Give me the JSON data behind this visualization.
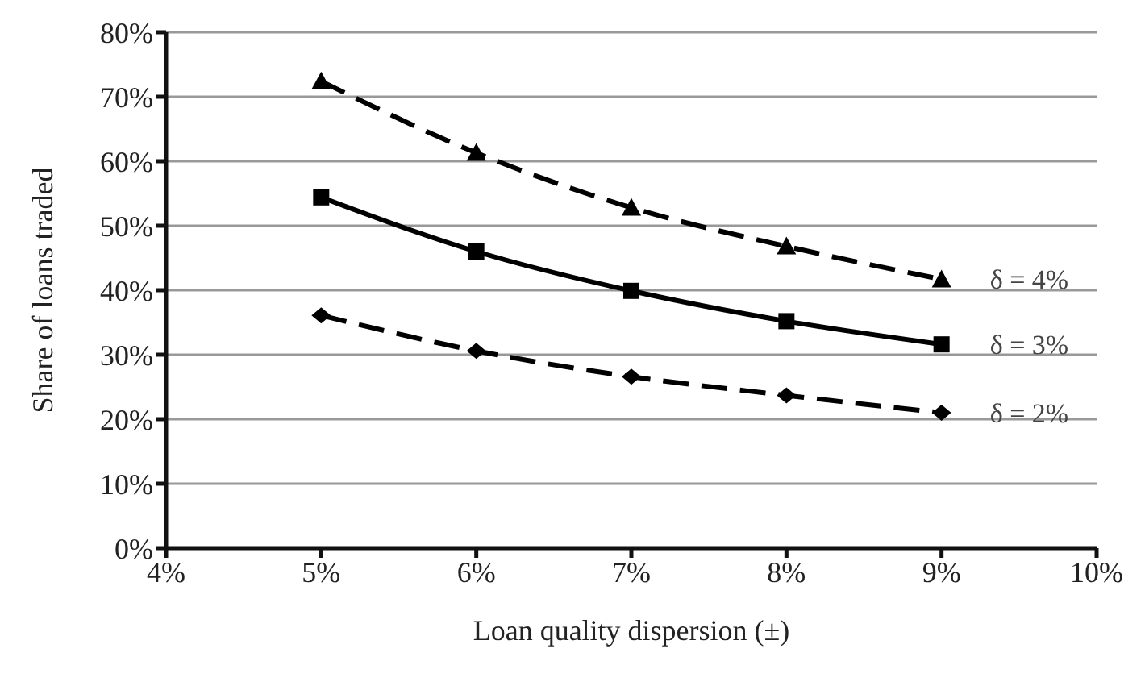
{
  "chart_data": {
    "type": "line",
    "xlabel": "Loan quality dispersion (±)",
    "ylabel": "Share of loans traded",
    "x": [
      5,
      6,
      7,
      8,
      9
    ],
    "series": [
      {
        "name": "δ = 4%",
        "color": "#000000",
        "values": [
          72.4,
          61.3,
          52.8,
          46.8,
          41.7
        ],
        "marker": "triangle",
        "line_style": "dashed"
      },
      {
        "name": "δ = 3%",
        "color": "#000000",
        "values": [
          54.4,
          46.0,
          39.9,
          35.2,
          31.6
        ],
        "marker": "square",
        "line_style": "solid"
      },
      {
        "name": "δ = 2%",
        "color": "#000000",
        "values": [
          36.1,
          30.6,
          26.6,
          23.7,
          21.0
        ],
        "marker": "diamond",
        "line_style": "dashed"
      }
    ],
    "xlim": [
      4,
      10
    ],
    "xticks": [
      {
        "value": 4,
        "label": "4%"
      },
      {
        "value": 5,
        "label": "5%"
      },
      {
        "value": 6,
        "label": "6%"
      },
      {
        "value": 7,
        "label": "7%"
      },
      {
        "value": 8,
        "label": "8%"
      },
      {
        "value": 9,
        "label": "9%"
      },
      {
        "value": 10,
        "label": "10%"
      }
    ],
    "ylim": [
      0,
      80
    ],
    "yticks": [
      {
        "value": 0,
        "label": "0%"
      },
      {
        "value": 10,
        "label": "10%"
      },
      {
        "value": 20,
        "label": "20%"
      },
      {
        "value": 30,
        "label": "30%"
      },
      {
        "value": 40,
        "label": "40%"
      },
      {
        "value": 50,
        "label": "50%"
      },
      {
        "value": 60,
        "label": "60%"
      },
      {
        "value": 70,
        "label": "70%"
      },
      {
        "value": 80,
        "label": "80%"
      }
    ],
    "grid": "y",
    "legend": false
  }
}
